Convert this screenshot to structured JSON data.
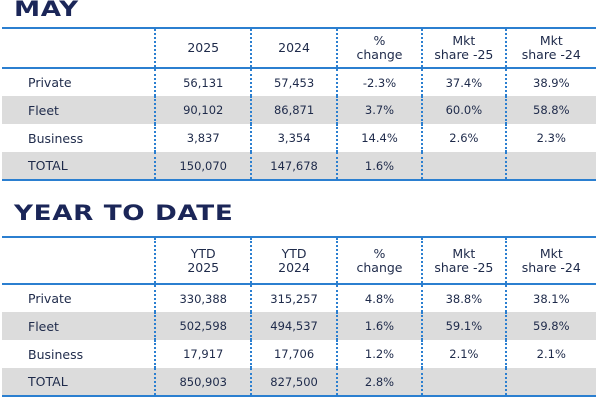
{
  "sections": [
    {
      "title": "MAY",
      "headers": [
        "",
        "2025",
        "2024",
        "%\nchange",
        "Mkt\nshare -25",
        "Mkt\nshare -24"
      ],
      "rows": [
        [
          "Private",
          "56,131",
          "57,453",
          "-2.3%",
          "37.4%",
          "38.9%"
        ],
        [
          "Fleet",
          "90,102",
          "86,871",
          "3.7%",
          "60.0%",
          "58.8%"
        ],
        [
          "Business",
          "3,837",
          "3,354",
          "14.4%",
          "2.6%",
          "2.3%"
        ],
        [
          "TOTAL",
          "150,070",
          "147,678",
          "1.6%",
          "",
          ""
        ]
      ]
    },
    {
      "title": "YEAR TO DATE",
      "headers": [
        "",
        "YTD\n2025",
        "YTD\n2024",
        "%\nchange",
        "Mkt\nshare -25",
        "Mkt\nshare -24"
      ],
      "rows": [
        [
          "Private",
          "330,388",
          "315,257",
          "4.8%",
          "38.8%",
          "38.1%"
        ],
        [
          "Fleet",
          "502,598",
          "494,537",
          "1.6%",
          "59.1%",
          "59.8%"
        ],
        [
          "Business",
          "17,917",
          "17,706",
          "1.2%",
          "2.1%",
          "2.1%"
        ],
        [
          "TOTAL",
          "850,903",
          "827,500",
          "2.8%",
          "",
          ""
        ]
      ]
    }
  ],
  "colors": {
    "title": "#1b2658",
    "rule": "#2b7fd0",
    "band": "#dcdcdc"
  }
}
